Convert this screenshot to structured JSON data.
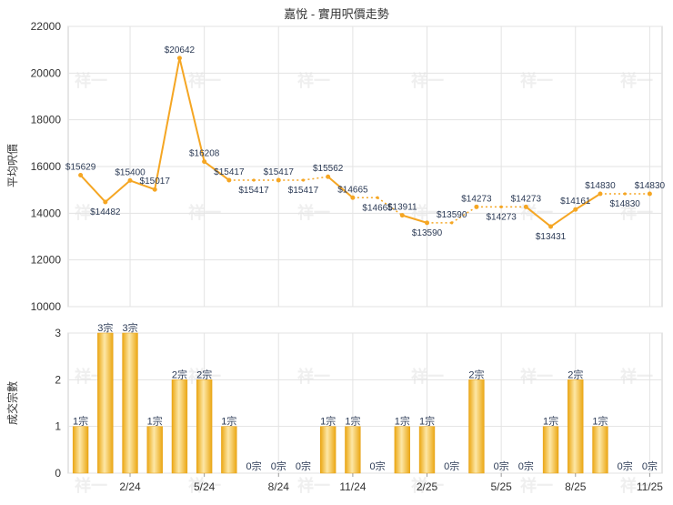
{
  "chart_data": [
    {
      "type": "line",
      "title": "嘉悅 - 實用呎價走勢",
      "ylabel": "平均呎價",
      "ylim": [
        10000,
        22000
      ],
      "yticks": [
        "22000",
        "20000",
        "18000",
        "16000",
        "14000",
        "12000",
        "10000"
      ],
      "grid": true,
      "series": [
        {
          "values": [
            15629,
            14482,
            15400,
            15017,
            20642,
            16208,
            15417,
            15417,
            15417,
            15417,
            15562,
            14665,
            14665,
            13911,
            13590,
            13590,
            14273,
            14273,
            14273,
            13431,
            14161,
            14830,
            14830,
            14830
          ],
          "labels": [
            "$15629",
            "$14482",
            "$15400",
            "$15017",
            "$20642",
            "$16208",
            "$15417",
            "$15417",
            "$15417",
            "$15417",
            "$15562",
            "$14665",
            "$14665",
            "$13911",
            "$13590",
            "$13590",
            "$14273",
            "$14273",
            "$14273",
            "$13431",
            "$14161",
            "$14830",
            "$14830",
            "$14830"
          ],
          "interpolated": [
            false,
            false,
            false,
            false,
            false,
            false,
            false,
            true,
            false,
            true,
            false,
            false,
            true,
            false,
            false,
            true,
            false,
            true,
            false,
            false,
            false,
            false,
            true,
            false
          ]
        }
      ],
      "colors": {
        "line": "#f5a623",
        "dots": "#f5a623",
        "grid": "#e3e3e3"
      }
    },
    {
      "type": "bar",
      "ylabel": "成交宗數",
      "ylim": [
        0,
        3
      ],
      "yticks": [
        "3",
        "2",
        "1",
        "0"
      ],
      "grid": true,
      "values": [
        1,
        3,
        3,
        1,
        2,
        2,
        1,
        0,
        0,
        0,
        1,
        1,
        0,
        1,
        1,
        0,
        2,
        0,
        0,
        1,
        2,
        1,
        0,
        0
      ],
      "labels": [
        "1宗",
        "3宗",
        "3宗",
        "1宗",
        "2宗",
        "2宗",
        "1宗",
        "0宗",
        "0宗",
        "0宗",
        "1宗",
        "1宗",
        "0宗",
        "1宗",
        "1宗",
        "0宗",
        "2宗",
        "0宗",
        "0宗",
        "1宗",
        "2宗",
        "1宗",
        "0宗",
        "0宗"
      ],
      "x_tick_labels": [
        {
          "index": 2,
          "label": "2/24"
        },
        {
          "index": 5,
          "label": "5/24"
        },
        {
          "index": 8,
          "label": "8/24"
        },
        {
          "index": 11,
          "label": "11/24"
        },
        {
          "index": 14,
          "label": "2/25"
        },
        {
          "index": 17,
          "label": "5/25"
        },
        {
          "index": 20,
          "label": "8/25"
        },
        {
          "index": 23,
          "label": "11/25"
        }
      ],
      "colors": {
        "bar_light": "#fde7a6",
        "bar_mid": "#f7c544",
        "bar_dark": "#eba713"
      }
    }
  ],
  "watermark": "祥一"
}
